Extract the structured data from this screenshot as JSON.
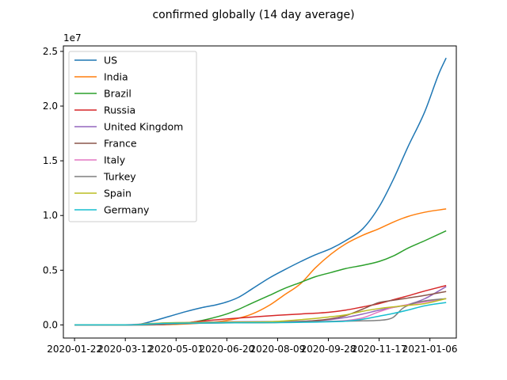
{
  "chart_data": {
    "type": "line",
    "title": "confirmed globally (14 day average)",
    "xlabel": "",
    "ylabel": "",
    "y_multiplier_label": "1e7",
    "x_tick_labels": [
      "2020-01-22",
      "2020-03-12",
      "2020-05-01",
      "2020-06-20",
      "2020-08-09",
      "2020-09-28",
      "2020-11-17",
      "2021-01-06"
    ],
    "y_tick_labels": [
      "0.0",
      "0.5",
      "1.0",
      "1.5",
      "2.0",
      "2.5"
    ],
    "y_ticks": [
      0,
      5000000,
      10000000,
      15000000,
      20000000,
      25000000
    ],
    "x_range": [
      "2020-01-11",
      "2021-02-01"
    ],
    "ylim": [
      -1200000,
      25500000
    ],
    "grid": false,
    "legend_position": "upper-left",
    "series": [
      {
        "name": "US",
        "color": "#1f77b4",
        "points": [
          [
            "2020-01-22",
            0
          ],
          [
            "2020-03-12",
            3000
          ],
          [
            "2020-03-25",
            50000
          ],
          [
            "2020-04-10",
            400000
          ],
          [
            "2020-04-25",
            800000
          ],
          [
            "2020-05-10",
            1200000
          ],
          [
            "2020-05-25",
            1550000
          ],
          [
            "2020-06-10",
            1850000
          ],
          [
            "2020-06-20",
            2100000
          ],
          [
            "2020-07-01",
            2500000
          ],
          [
            "2020-07-15",
            3300000
          ],
          [
            "2020-08-01",
            4300000
          ],
          [
            "2020-08-15",
            5000000
          ],
          [
            "2020-09-01",
            5800000
          ],
          [
            "2020-09-15",
            6400000
          ],
          [
            "2020-10-01",
            7000000
          ],
          [
            "2020-10-15",
            7700000
          ],
          [
            "2020-11-01",
            8800000
          ],
          [
            "2020-11-17",
            10800000
          ],
          [
            "2020-12-01",
            13300000
          ],
          [
            "2020-12-15",
            16200000
          ],
          [
            "2021-01-01",
            19500000
          ],
          [
            "2021-01-15",
            23000000
          ],
          [
            "2021-01-22",
            24400000
          ]
        ]
      },
      {
        "name": "India",
        "color": "#ff7f0e",
        "points": [
          [
            "2020-01-22",
            0
          ],
          [
            "2020-03-12",
            0
          ],
          [
            "2020-04-15",
            12000
          ],
          [
            "2020-05-15",
            100000
          ],
          [
            "2020-06-15",
            350000
          ],
          [
            "2020-07-01",
            600000
          ],
          [
            "2020-07-15",
            1000000
          ],
          [
            "2020-08-01",
            1800000
          ],
          [
            "2020-08-15",
            2700000
          ],
          [
            "2020-09-01",
            3800000
          ],
          [
            "2020-09-15",
            5200000
          ],
          [
            "2020-10-01",
            6500000
          ],
          [
            "2020-10-15",
            7400000
          ],
          [
            "2020-11-01",
            8200000
          ],
          [
            "2020-11-17",
            8800000
          ],
          [
            "2020-12-01",
            9400000
          ],
          [
            "2020-12-15",
            9900000
          ],
          [
            "2021-01-01",
            10300000
          ],
          [
            "2021-01-22",
            10600000
          ]
        ]
      },
      {
        "name": "Brazil",
        "color": "#2ca02c",
        "points": [
          [
            "2020-01-22",
            0
          ],
          [
            "2020-03-12",
            0
          ],
          [
            "2020-04-15",
            25000
          ],
          [
            "2020-05-01",
            90000
          ],
          [
            "2020-05-15",
            220000
          ],
          [
            "2020-06-01",
            520000
          ],
          [
            "2020-06-20",
            1000000
          ],
          [
            "2020-07-01",
            1400000
          ],
          [
            "2020-07-15",
            2000000
          ],
          [
            "2020-08-01",
            2700000
          ],
          [
            "2020-08-15",
            3300000
          ],
          [
            "2020-09-01",
            3900000
          ],
          [
            "2020-09-15",
            4400000
          ],
          [
            "2020-10-01",
            4800000
          ],
          [
            "2020-10-15",
            5150000
          ],
          [
            "2020-11-01",
            5450000
          ],
          [
            "2020-11-17",
            5800000
          ],
          [
            "2020-12-01",
            6300000
          ],
          [
            "2020-12-15",
            7000000
          ],
          [
            "2021-01-01",
            7700000
          ],
          [
            "2021-01-22",
            8600000
          ]
        ]
      },
      {
        "name": "Russia",
        "color": "#d62728",
        "points": [
          [
            "2020-01-22",
            0
          ],
          [
            "2020-03-12",
            0
          ],
          [
            "2020-04-15",
            20000
          ],
          [
            "2020-05-01",
            110000
          ],
          [
            "2020-05-15",
            240000
          ],
          [
            "2020-06-01",
            400000
          ],
          [
            "2020-06-20",
            550000
          ],
          [
            "2020-07-15",
            720000
          ],
          [
            "2020-08-09",
            880000
          ],
          [
            "2020-09-01",
            1000000
          ],
          [
            "2020-09-28",
            1150000
          ],
          [
            "2020-10-15",
            1350000
          ],
          [
            "2020-11-01",
            1650000
          ],
          [
            "2020-11-17",
            1950000
          ],
          [
            "2020-12-01",
            2300000
          ],
          [
            "2020-12-15",
            2650000
          ],
          [
            "2021-01-01",
            3100000
          ],
          [
            "2021-01-22",
            3600000
          ]
        ]
      },
      {
        "name": "United Kingdom",
        "color": "#9467bd",
        "points": [
          [
            "2020-01-22",
            0
          ],
          [
            "2020-03-12",
            500
          ],
          [
            "2020-04-01",
            25000
          ],
          [
            "2020-04-15",
            90000
          ],
          [
            "2020-05-01",
            160000
          ],
          [
            "2020-05-15",
            220000
          ],
          [
            "2020-06-15",
            280000
          ],
          [
            "2020-08-09",
            310000
          ],
          [
            "2020-09-15",
            380000
          ],
          [
            "2020-10-01",
            500000
          ],
          [
            "2020-10-15",
            680000
          ],
          [
            "2020-11-01",
            1000000
          ],
          [
            "2020-11-17",
            1350000
          ],
          [
            "2020-12-01",
            1600000
          ],
          [
            "2020-12-15",
            1850000
          ],
          [
            "2021-01-01",
            2400000
          ],
          [
            "2021-01-22",
            3500000
          ]
        ]
      },
      {
        "name": "France",
        "color": "#8c564b",
        "points": [
          [
            "2020-01-22",
            0
          ],
          [
            "2020-03-12",
            2000
          ],
          [
            "2020-04-01",
            50000
          ],
          [
            "2020-04-15",
            120000
          ],
          [
            "2020-05-01",
            160000
          ],
          [
            "2020-06-20",
            190000
          ],
          [
            "2020-08-09",
            220000
          ],
          [
            "2020-09-01",
            310000
          ],
          [
            "2020-09-28",
            530000
          ],
          [
            "2020-10-15",
            850000
          ],
          [
            "2020-11-01",
            1450000
          ],
          [
            "2020-11-17",
            2050000
          ],
          [
            "2020-12-01",
            2250000
          ],
          [
            "2020-12-15",
            2450000
          ],
          [
            "2021-01-01",
            2700000
          ],
          [
            "2021-01-22",
            3050000
          ]
        ]
      },
      {
        "name": "Italy",
        "color": "#e377c2",
        "points": [
          [
            "2020-01-22",
            0
          ],
          [
            "2020-03-12",
            12000
          ],
          [
            "2020-04-01",
            100000
          ],
          [
            "2020-04-15",
            160000
          ],
          [
            "2020-05-01",
            205000
          ],
          [
            "2020-06-20",
            238000
          ],
          [
            "2020-08-09",
            250000
          ],
          [
            "2020-09-28",
            310000
          ],
          [
            "2020-10-15",
            400000
          ],
          [
            "2020-11-01",
            650000
          ],
          [
            "2020-11-17",
            1200000
          ],
          [
            "2020-12-01",
            1600000
          ],
          [
            "2020-12-15",
            1850000
          ],
          [
            "2021-01-01",
            2100000
          ],
          [
            "2021-01-22",
            2400000
          ]
        ]
      },
      {
        "name": "Turkey",
        "color": "#7f7f7f",
        "points": [
          [
            "2020-01-22",
            0
          ],
          [
            "2020-03-12",
            0
          ],
          [
            "2020-04-01",
            12000
          ],
          [
            "2020-04-15",
            60000
          ],
          [
            "2020-05-01",
            110000
          ],
          [
            "2020-06-20",
            185000
          ],
          [
            "2020-08-09",
            240000
          ],
          [
            "2020-09-28",
            315000
          ],
          [
            "2020-11-01",
            370000
          ],
          [
            "2020-11-17",
            420000
          ],
          [
            "2020-11-25",
            500000
          ],
          [
            "2020-12-01",
            700000
          ],
          [
            "2020-12-10",
            1500000
          ],
          [
            "2020-12-20",
            1950000
          ],
          [
            "2021-01-01",
            2200000
          ],
          [
            "2021-01-22",
            2400000
          ]
        ]
      },
      {
        "name": "Spain",
        "color": "#bcbd22",
        "points": [
          [
            "2020-01-22",
            0
          ],
          [
            "2020-03-12",
            2000
          ],
          [
            "2020-04-01",
            90000
          ],
          [
            "2020-04-15",
            170000
          ],
          [
            "2020-05-01",
            210000
          ],
          [
            "2020-06-20",
            245000
          ],
          [
            "2020-08-09",
            320000
          ],
          [
            "2020-09-01",
            480000
          ],
          [
            "2020-09-28",
            720000
          ],
          [
            "2020-10-15",
            920000
          ],
          [
            "2020-11-01",
            1250000
          ],
          [
            "2020-11-17",
            1500000
          ],
          [
            "2020-12-01",
            1650000
          ],
          [
            "2020-12-15",
            1780000
          ],
          [
            "2021-01-01",
            1950000
          ],
          [
            "2021-01-22",
            2400000
          ]
        ]
      },
      {
        "name": "Germany",
        "color": "#17becf",
        "points": [
          [
            "2020-01-22",
            0
          ],
          [
            "2020-03-12",
            2000
          ],
          [
            "2020-04-01",
            60000
          ],
          [
            "2020-04-15",
            130000
          ],
          [
            "2020-05-01",
            160000
          ],
          [
            "2020-06-20",
            190000
          ],
          [
            "2020-08-09",
            215000
          ],
          [
            "2020-09-28",
            285000
          ],
          [
            "2020-10-15",
            340000
          ],
          [
            "2020-11-01",
            520000
          ],
          [
            "2020-11-17",
            800000
          ],
          [
            "2020-12-01",
            1050000
          ],
          [
            "2020-12-15",
            1350000
          ],
          [
            "2021-01-01",
            1750000
          ],
          [
            "2021-01-22",
            2050000
          ]
        ]
      }
    ]
  }
}
